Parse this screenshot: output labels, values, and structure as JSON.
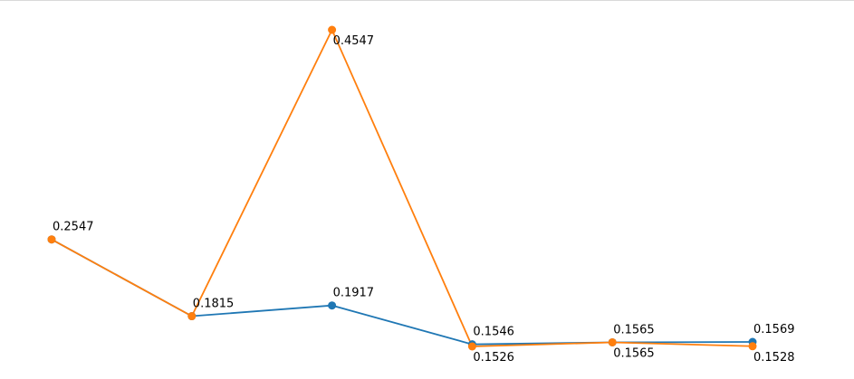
{
  "chart_data": {
    "type": "line",
    "title": "",
    "xlabel": "",
    "ylabel": "",
    "x": [
      1,
      2,
      3,
      4,
      5,
      6
    ],
    "ylim": [
      0.13,
      0.48
    ],
    "grid": false,
    "series": [
      {
        "color": "#1f77b4",
        "values": [
          0.2547,
          0.1815,
          0.1917,
          0.1546,
          0.1565,
          0.1569
        ],
        "labels": [
          "",
          "0.1815",
          "0.1917",
          "0.1546",
          "0.1565",
          "0.1569"
        ],
        "label_position": "above"
      },
      {
        "color": "#ff7f0e",
        "values": [
          0.2547,
          0.1815,
          0.4547,
          0.1526,
          0.1565,
          0.1528
        ],
        "labels": [
          "0.2547",
          "",
          "0.4547",
          "0.1526",
          "0.1565",
          "0.1528"
        ],
        "label_position": [
          "above",
          "above",
          "below",
          "below",
          "below",
          "below"
        ]
      }
    ]
  }
}
